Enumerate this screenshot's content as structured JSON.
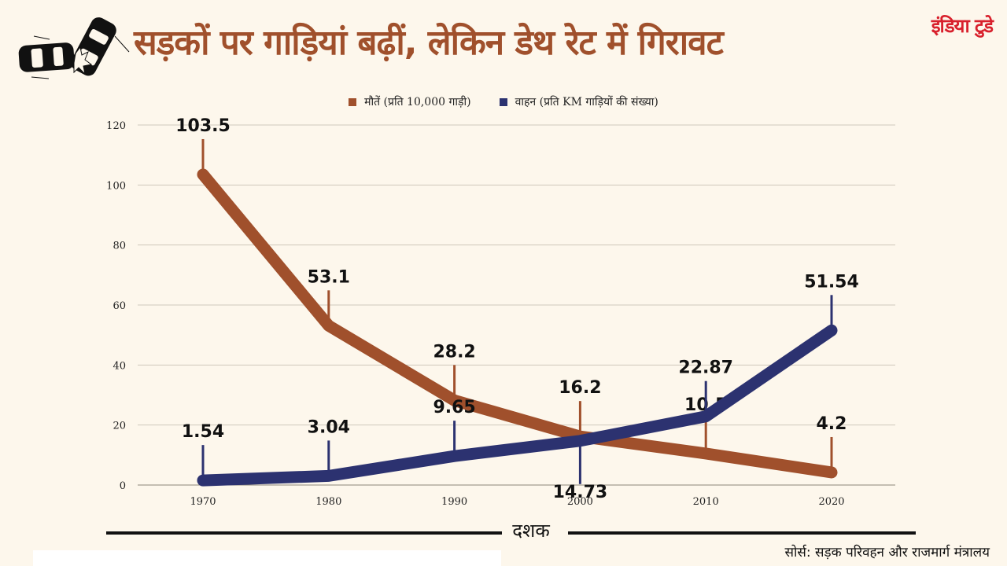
{
  "header": {
    "title": "सड़कों पर गाड़ियां बढ़ीं, लेकिन डेथ रेट में गिरावट",
    "brand": "इंडिया टुडे",
    "icon": "car-crash-icon"
  },
  "colors": {
    "deaths": "#a0502c",
    "vehicles": "#2c3270",
    "title": "#a0502c",
    "brand": "#d8202c",
    "background": "#fdf7ec",
    "grid": "#cfc8bb"
  },
  "chart_data": {
    "type": "line",
    "title": "सड़कों पर गाड़ियां बढ़ीं, लेकिन डेथ रेट में गिरावट",
    "xlabel": "दशक",
    "ylabel": "",
    "x": [
      "1970",
      "1980",
      "1990",
      "2000",
      "2010",
      "2020"
    ],
    "yticks": [
      "0",
      "20",
      "40",
      "60",
      "80",
      "100",
      "120"
    ],
    "ylim": [
      0,
      120
    ],
    "grid": true,
    "legend_position": "top-center",
    "series": [
      {
        "name": "मौतें (प्रति 10,000 गाड़ी)",
        "key": "deaths",
        "values": [
          103.5,
          53.1,
          28.2,
          16.2,
          10.5,
          4.2
        ],
        "labels": [
          "103.5",
          "53.1",
          "28.2",
          "16.2",
          "10.5",
          "4.2"
        ]
      },
      {
        "name": "वाहन (प्रति KM गाड़ियों की संख्या)",
        "key": "vehicles",
        "values": [
          1.54,
          3.04,
          9.65,
          14.73,
          22.87,
          51.54
        ],
        "labels": [
          "1.54",
          "3.04",
          "9.65",
          "14.73",
          "22.87",
          "51.54"
        ]
      }
    ]
  },
  "footer": {
    "source": "सोर्स: सड़क परिवहन और राजमार्ग मंत्रालय"
  }
}
